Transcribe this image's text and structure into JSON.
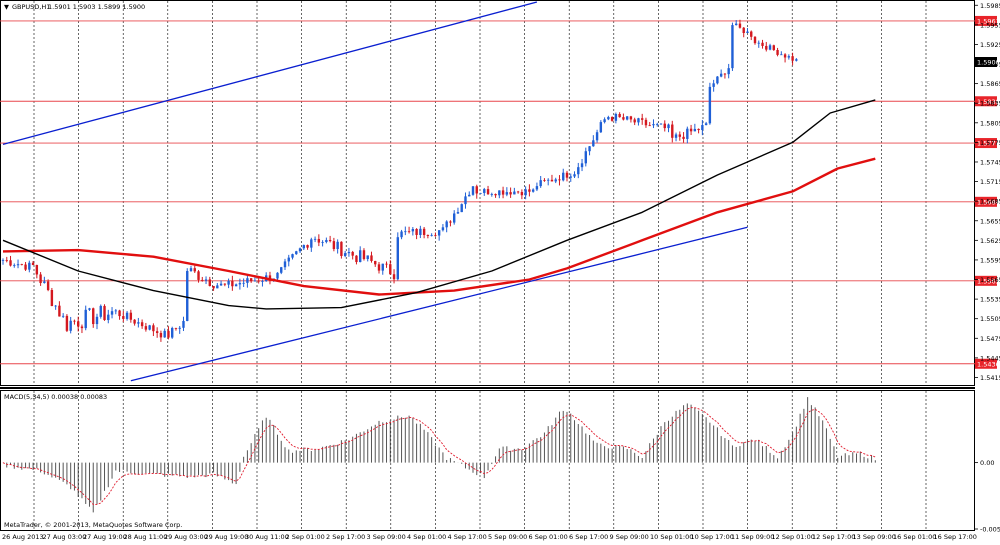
{
  "header": {
    "symbol_label": "GBPUSD,H1",
    "ohlc_text": "1.5901 1.5903 1.5899 1.5900"
  },
  "macd_label": "MACD(5,34,5) 0.00038 0.00083",
  "copyright": "MetaTrader, © 2001-2013, MetaQuotes Software Corp.",
  "colors": {
    "background": "#ffffff",
    "grid": "#000000",
    "candle_up": "#1f5fd6",
    "candle_down": "#d4181f",
    "ma_fast": "#000000",
    "ma_slow": "#e10f0f",
    "channel": "#0a1fd0",
    "hline": "#e8474b",
    "histogram": "#555555",
    "signal": "#e0192b"
  },
  "chart_data": [
    {
      "type": "candlestick",
      "symbol": "GBPUSD",
      "timeframe": "H1",
      "x_labels": [
        "26 Aug 2013",
        "27 Aug 03:00",
        "27 Aug 19:00",
        "28 Aug 11:00",
        "29 Aug 03:00",
        "29 Aug 19:00",
        "30 Aug 11:00",
        "2 Sep 01:00",
        "2 Sep 17:00",
        "3 Sep 09:00",
        "4 Sep 01:00",
        "4 Sep 17:00",
        "5 Sep 09:00",
        "6 Sep 01:00",
        "6 Sep 17:00",
        "9 Sep 09:00",
        "10 Sep 01:00",
        "10 Sep 17:00",
        "11 Sep 09:00",
        "12 Sep 01:00",
        "12 Sep 17:00",
        "13 Sep 09:00",
        "16 Sep 01:00",
        "16 Sep 17:00"
      ],
      "y_ticks": [
        1.5985,
        1.5955,
        1.5925,
        1.5895,
        1.5865,
        1.5835,
        1.5805,
        1.5775,
        1.5745,
        1.5715,
        1.5685,
        1.5655,
        1.5625,
        1.5595,
        1.5565,
        1.5535,
        1.5505,
        1.5475,
        1.5445,
        1.5415
      ],
      "ylim": [
        1.5405,
        1.599
      ],
      "current_price": "1.5900",
      "price_labels": [
        "1.5961",
        "1.5838",
        "1.5774",
        "1.5684",
        "1.5563",
        "1.5436"
      ],
      "horizontal_levels": [
        1.5961,
        1.5838,
        1.5774,
        1.5684,
        1.5563,
        1.5436
      ],
      "channel_lines": [
        {
          "from_bar": 0,
          "from": 1.5772,
          "to_bar": 142,
          "to": 1.599
        },
        {
          "from_bar": 34,
          "from": 1.541,
          "to_bar": 198,
          "to": 1.5645
        }
      ],
      "segments": [
        {
          "bars": 8,
          "start": 1.5595,
          "end": 1.5585,
          "noise": 0.0015
        },
        {
          "bars": 10,
          "start": 1.5585,
          "end": 1.5495,
          "noise": 0.0025
        },
        {
          "bars": 12,
          "start": 1.55,
          "end": 1.5515,
          "noise": 0.003
        },
        {
          "bars": 14,
          "start": 1.5515,
          "end": 1.548,
          "noise": 0.0015
        },
        {
          "bars": 5,
          "start": 1.548,
          "end": 1.55,
          "noise": 0.0015
        },
        {
          "bars": 10,
          "start": 1.558,
          "end": 1.5555,
          "noise": 0.002
        },
        {
          "bars": 14,
          "start": 1.5555,
          "end": 1.557,
          "noise": 0.0015
        },
        {
          "bars": 10,
          "start": 1.557,
          "end": 1.563,
          "noise": 0.002
        },
        {
          "bars": 12,
          "start": 1.563,
          "end": 1.56,
          "noise": 0.002
        },
        {
          "bars": 10,
          "start": 1.56,
          "end": 1.5575,
          "noise": 0.002
        },
        {
          "bars": 12,
          "start": 1.5635,
          "end": 1.564,
          "noise": 0.0015
        },
        {
          "bars": 9,
          "start": 1.564,
          "end": 1.571,
          "noise": 0.0015
        },
        {
          "bars": 16,
          "start": 1.57,
          "end": 1.57,
          "noise": 0.0012
        },
        {
          "bars": 11,
          "start": 1.571,
          "end": 1.573,
          "noise": 0.0012
        },
        {
          "bars": 8,
          "start": 1.574,
          "end": 1.581,
          "noise": 0.0015
        },
        {
          "bars": 17,
          "start": 1.5815,
          "end": 1.5795,
          "noise": 0.0015
        },
        {
          "bars": 10,
          "start": 1.578,
          "end": 1.58,
          "noise": 0.0015
        },
        {
          "bars": 6,
          "start": 1.586,
          "end": 1.589,
          "noise": 0.001
        },
        {
          "bars": 6,
          "start": 1.5955,
          "end": 1.594,
          "noise": 0.001
        },
        {
          "bars": 12,
          "start": 1.593,
          "end": 1.59,
          "noise": 0.001
        }
      ],
      "ma_fast": {
        "points": [
          [
            0,
            1.5625
          ],
          [
            20,
            1.5578
          ],
          [
            40,
            1.5548
          ],
          [
            60,
            1.5525
          ],
          [
            70,
            1.552
          ],
          [
            90,
            1.5522
          ],
          [
            110,
            1.5545
          ],
          [
            130,
            1.5578
          ],
          [
            150,
            1.5625
          ],
          [
            170,
            1.5668
          ],
          [
            190,
            1.5725
          ],
          [
            210,
            1.5775
          ],
          [
            220,
            1.582
          ],
          [
            232,
            1.584
          ]
        ]
      },
      "ma_slow": {
        "points": [
          [
            0,
            1.5608
          ],
          [
            20,
            1.561
          ],
          [
            40,
            1.56
          ],
          [
            60,
            1.5578
          ],
          [
            80,
            1.5555
          ],
          [
            100,
            1.5542
          ],
          [
            120,
            1.5548
          ],
          [
            140,
            1.5565
          ],
          [
            150,
            1.5582
          ],
          [
            170,
            1.5625
          ],
          [
            190,
            1.5668
          ],
          [
            210,
            1.57
          ],
          [
            222,
            1.5735
          ],
          [
            232,
            1.575
          ]
        ]
      }
    },
    {
      "type": "histogram",
      "name": "MACD(5,34,5)",
      "value": "0.00038",
      "signal_value": "0.00083",
      "y_ticks": [
        "0.00",
        "-0.00564"
      ],
      "ylim": [
        -0.00564,
        0.006
      ],
      "histogram_points": [
        [
          0,
          -0.0002
        ],
        [
          10,
          -0.0007
        ],
        [
          18,
          -0.0021
        ],
        [
          24,
          -0.0043
        ],
        [
          30,
          -0.0007
        ],
        [
          40,
          -0.001
        ],
        [
          50,
          -0.0012
        ],
        [
          56,
          -0.001
        ],
        [
          62,
          -0.0018
        ],
        [
          64,
          0.0005
        ],
        [
          70,
          0.004
        ],
        [
          76,
          0.001
        ],
        [
          84,
          0.0012
        ],
        [
          92,
          0.002
        ],
        [
          100,
          0.0035
        ],
        [
          108,
          0.004
        ],
        [
          112,
          0.0028
        ],
        [
          118,
          0.0004
        ],
        [
          124,
          -0.0006
        ],
        [
          128,
          -0.0012
        ],
        [
          132,
          0.0012
        ],
        [
          138,
          0.0012
        ],
        [
          144,
          0.0025
        ],
        [
          148,
          0.0042
        ],
        [
          150,
          0.0045
        ],
        [
          158,
          0.0015
        ],
        [
          166,
          0.0012
        ],
        [
          170,
          0.0005
        ],
        [
          176,
          0.0035
        ],
        [
          182,
          0.005
        ],
        [
          188,
          0.0035
        ],
        [
          194,
          0.0014
        ],
        [
          200,
          0.002
        ],
        [
          206,
          0.0005
        ],
        [
          210,
          0.0025
        ],
        [
          214,
          0.0055
        ],
        [
          218,
          0.0035
        ],
        [
          222,
          0.0005
        ],
        [
          228,
          0.0008
        ],
        [
          232,
          0.0003
        ]
      ]
    }
  ]
}
